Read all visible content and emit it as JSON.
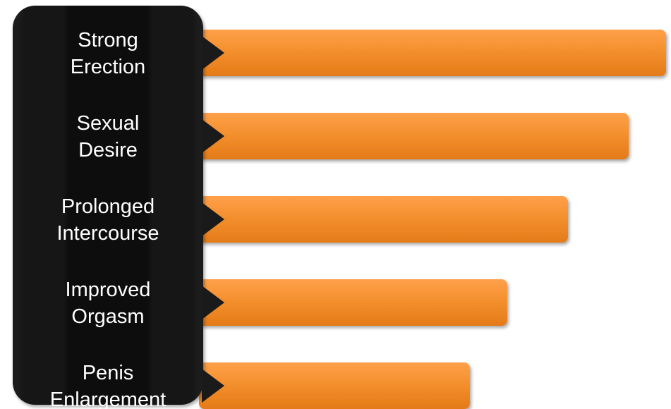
{
  "chart_data": {
    "type": "bar",
    "orientation": "horizontal",
    "categories": [
      [
        "Strong",
        "Erection"
      ],
      [
        "Sexual",
        "Desire"
      ],
      [
        "Prolonged",
        "Intercourse"
      ],
      [
        "Improved",
        "Orgasm"
      ],
      [
        "Penis",
        "Enlargement"
      ]
    ],
    "values": [
      100,
      92,
      79,
      66,
      58
    ],
    "xlim": [
      0,
      100
    ],
    "grid": false,
    "legend": "none",
    "colors": {
      "bar": "#f28e2b",
      "bar_dark": "#e97a1a",
      "label_box": "#111111",
      "arrow": "#1a1a1a",
      "label_text": "#ffffff"
    }
  }
}
